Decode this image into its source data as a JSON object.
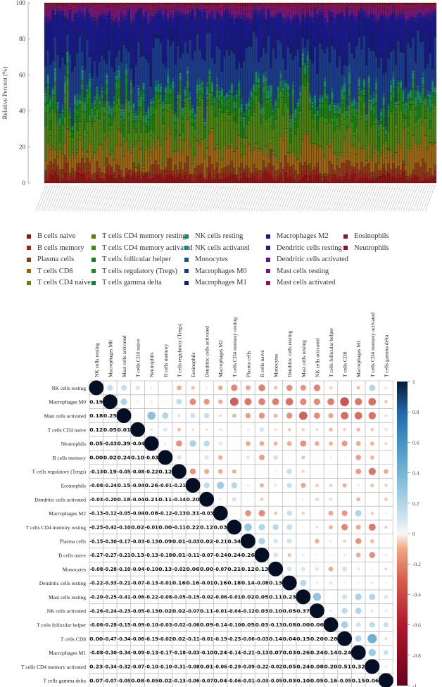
{
  "chart_data": [
    {
      "type": "bar",
      "stacked": true,
      "ylabel": "Relative Percent (%)",
      "ylim": [
        0,
        100
      ],
      "yticks": [
        "0",
        "20",
        "40",
        "60",
        "80",
        "100"
      ],
      "legend_position": "bottom",
      "note_values": "per-sample bars not individually readable; approximate mean composition (%) per cell type",
      "series": [
        {
          "name": "B cells naive",
          "color": "#8b1414",
          "mean_percent": 3
        },
        {
          "name": "B cells memory",
          "color": "#a3201c",
          "mean_percent": 2
        },
        {
          "name": "Plasma cells",
          "color": "#8a3a14",
          "mean_percent": 4
        },
        {
          "name": "T cells CD8",
          "color": "#9a6412",
          "mean_percent": 10
        },
        {
          "name": "T cells CD4 naive",
          "color": "#6e7c12",
          "mean_percent": 1
        },
        {
          "name": "T cells CD4 memory resting",
          "color": "#4e7f12",
          "mean_percent": 14
        },
        {
          "name": "T cells CD4 memory activated",
          "color": "#3c8c14",
          "mean_percent": 3
        },
        {
          "name": "T cells follicular helper",
          "color": "#1e7c14",
          "mean_percent": 5
        },
        {
          "name": "T cells regulatory (Tregs)",
          "color": "#1a8a22",
          "mean_percent": 3
        },
        {
          "name": "T cells gamma delta",
          "color": "#1a7a34",
          "mean_percent": 1
        },
        {
          "name": "NK cells resting",
          "color": "#188a5c",
          "mean_percent": 3
        },
        {
          "name": "NK cells activated",
          "color": "#18888a",
          "mean_percent": 1
        },
        {
          "name": "Monocytes",
          "color": "#185a7a",
          "mean_percent": 2
        },
        {
          "name": "Macrophages M0",
          "color": "#1a3a8a",
          "mean_percent": 19
        },
        {
          "name": "Macrophages M1",
          "color": "#141a78",
          "mean_percent": 6
        },
        {
          "name": "Macrophages M2",
          "color": "#18188c",
          "mean_percent": 14
        },
        {
          "name": "Dendritic cells resting",
          "color": "#2a1896",
          "mean_percent": 2
        },
        {
          "name": "Dendritic cells activated",
          "color": "#5a1896",
          "mean_percent": 1
        },
        {
          "name": "Mast cells resting",
          "color": "#7a1478",
          "mean_percent": 3
        },
        {
          "name": "Mast cells activated",
          "color": "#8c1450",
          "mean_percent": 2
        },
        {
          "name": "Eosinophils",
          "color": "#8c1438",
          "mean_percent": 0.5
        },
        {
          "name": "Neutrophils",
          "color": "#8a1424",
          "mean_percent": 0.5
        }
      ]
    },
    {
      "type": "heatmap",
      "style": "correlation-circles-upper, coefficients-lower",
      "variables": [
        "NK cells resting",
        "Macrophages M0",
        "Mast cells activated",
        "T cells CD4 naive",
        "Neutrophils",
        "B cells memory",
        "T cells regulatory (Tregs)",
        "Eosinophils",
        "Dendritic cells activated",
        "Macrophages M2",
        "T cells CD4 memory resting",
        "Plasma cells",
        "B cells naive",
        "Monocytes",
        "Dendritic cells resting",
        "Mast cells resting",
        "NK cells activated",
        "T cells follicular helper",
        "T cells CD8",
        "Macrophages M1",
        "T cells CD4 memory activated",
        "T cells gamma delta"
      ],
      "lower_triangle": [
        [],
        [
          "0.19"
        ],
        [
          "0.18",
          "0.25"
        ],
        [
          "0.12",
          "0.05",
          "0.01"
        ],
        [
          "0.05",
          "-0.03",
          "0.39",
          "-0.04"
        ],
        [
          "0.00",
          "0.02",
          "0.24",
          "0.10",
          "-0.03"
        ],
        [
          "-0.13",
          "0.19",
          "-0.05",
          "-0.08",
          "-0.22",
          "0.12"
        ],
        [
          "-0.08",
          "-0.24",
          "0.15",
          "-0.04",
          "0.26",
          "-0.01",
          "-0.21"
        ],
        [
          "-0.03",
          "-0.20",
          "0.18",
          "-0.04",
          "0.21",
          "0.11",
          "-0.14",
          "0.20"
        ],
        [
          "-0.13",
          "-0.12",
          "-0.05",
          "-0.04",
          "0.08",
          "-0.12",
          "-0.13",
          "0.31",
          "-0.03"
        ],
        [
          "-0.25",
          "-0.42",
          "-0.10",
          "0.02",
          "-0.01",
          "0.00",
          "-0.11",
          "0.22",
          "0.12",
          "0.03"
        ],
        [
          "-0.15",
          "-0.30",
          "-0.17",
          "-0.03",
          "-0.13",
          "0.09",
          "0.01",
          "-0.03",
          "0.02",
          "-0.21",
          "0.34"
        ],
        [
          "-0.27",
          "-0.27",
          "-0.21",
          "0.13",
          "-0.13",
          "-0.18",
          "0.01",
          "-0.11",
          "-0.07",
          "-0.24",
          "0.24",
          "0.26"
        ],
        [
          "-0.08",
          "-0.28",
          "-0.10",
          "-0.04",
          "-0.10",
          "0.13",
          "-0.02",
          "0.06",
          "0.00",
          "-0.07",
          "0.21",
          "0.12",
          "0.13"
        ],
        [
          "-0.22",
          "-0.33",
          "-0.21",
          "-0.07",
          "-0.13",
          "-0.01",
          "0.16",
          "0.16",
          "-0.01",
          "0.16",
          "0.18",
          "0.14",
          "-0.08",
          "0.13"
        ],
        [
          "-0.20",
          "-0.25",
          "-0.41",
          "-0.06",
          "-0.22",
          "-0.08",
          "-0.05",
          "-0.15",
          "-0.02",
          "-0.06",
          "-0.01",
          "0.02",
          "0.05",
          "0.11",
          "0.23"
        ],
        [
          "-0.26",
          "-0.24",
          "-0.23",
          "-0.05",
          "-0.13",
          "0.02",
          "0.02",
          "-0.07",
          "0.11",
          "-0.01",
          "-0.04",
          "-0.12",
          "0.03",
          "0.10",
          "0.05",
          "0.37"
        ],
        [
          "-0.06",
          "-0.28",
          "-0.15",
          "-0.09",
          "-0.10",
          "-0.03",
          "-0.02",
          "-0.06",
          "0.09",
          "-0.14",
          "-0.10",
          "0.05",
          "0.03",
          "-0.13",
          "0.08",
          "0.00",
          "0.06"
        ],
        [
          "0.00",
          "-0.47",
          "-0.34",
          "-0.06",
          "-0.19",
          "-0.02",
          "0.02",
          "-0.11",
          "-0.01",
          "-0.19",
          "-0.25",
          "-0.06",
          "-0.03",
          "0.14",
          "0.04",
          "0.15",
          "0.20",
          "0.28"
        ],
        [
          "-0.08",
          "-0.30",
          "-0.34",
          "-0.09",
          "-0.13",
          "-0.17",
          "-0.18",
          "-0.03",
          "-0.10",
          "0.24",
          "-0.14",
          "-0.21",
          "-0.13",
          "0.07",
          "0.03",
          "0.26",
          "0.24",
          "0.14",
          "0.24"
        ],
        [
          "0.23",
          "-0.34",
          "-0.32",
          "-0.07",
          "-0.10",
          "-0.10",
          "-0.31",
          "-0.08",
          "0.01",
          "-0.06",
          "-0.29",
          "-0.09",
          "-0.22",
          "-0.02",
          "0.05",
          "0.24",
          "0.08",
          "0.20",
          "0.51",
          "0.32"
        ],
        [
          "0.07",
          "-0.07",
          "-0.05",
          "0.08",
          "-0.05",
          "0.02",
          "-0.13",
          "-0.06",
          "-0.07",
          "0.04",
          "-0.06",
          "-0.01",
          "-0.03",
          "-0.05",
          "0.03",
          "0.10",
          "0.05",
          "0.16",
          "-0.05",
          "0.15",
          "0.06"
        ]
      ],
      "colorbar": {
        "range": [
          -1,
          1
        ],
        "ticks": [
          "1",
          "0.8",
          "0.6",
          "0.4",
          "0.2",
          "0",
          "-0.2",
          "-0.4",
          "-0.6",
          "-0.8",
          "-1"
        ],
        "colors": {
          "positive": "#053061",
          "mid": "#f7f7f7",
          "negative": "#67001f"
        }
      }
    }
  ]
}
